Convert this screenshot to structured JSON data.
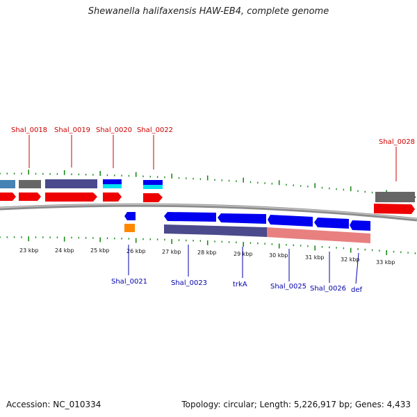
{
  "title": "Shewanella halifaxensis HAW-EB4, complete genome",
  "footer": {
    "accession": "Accession: NC_010334",
    "summary": "Topology: circular; Length: 5,226,917 bp; Genes: 4,433"
  },
  "kbp_labels": [
    "23 kbp",
    "24 kbp",
    "25 kbp",
    "26 kbp",
    "27 kbp",
    "28 kbp",
    "29 kbp",
    "30 kbp",
    "31 kbp",
    "32 kbp",
    "33 kbp"
  ],
  "top_genes": [
    "Shal_0018",
    "Shal_0019",
    "Shal_0020",
    "Shal_0022",
    "Shal_0028"
  ],
  "bottom_genes": [
    "Shal_0021",
    "Shal_0023",
    "trkA",
    "Shal_0025",
    "Shal_0026",
    "def"
  ],
  "colors": {
    "forward_cds": "#ee0000",
    "reverse_cds": "#0000ee",
    "gene_forward_bar": "#666666",
    "gene_slate_bar": "#4a4a8c",
    "gene_salmon_bar": "#e88080",
    "cyan_bar": "#00e0f0",
    "orange_bar": "#ff8800",
    "tick_green": "#1a8a1a",
    "backbone": "#8c8c8c",
    "top_label": "#cc0000",
    "bottom_label": "#0000aa"
  }
}
